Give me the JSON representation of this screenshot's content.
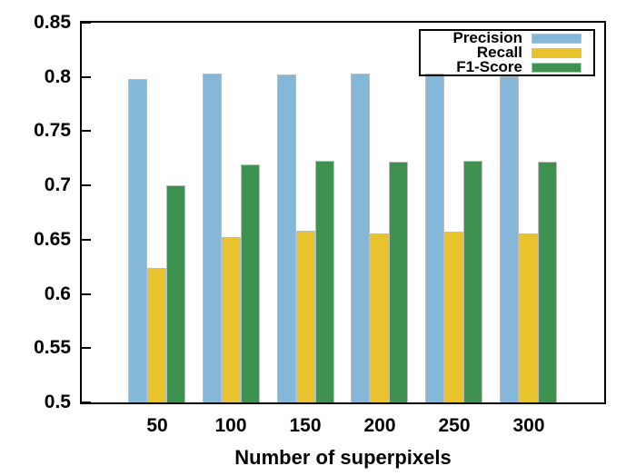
{
  "figure": {
    "background": "#ffffff",
    "axis_color": "#000000",
    "bar_border_color": "#bdbdbd"
  },
  "chart_data": {
    "type": "bar",
    "title": "",
    "xlabel": "Number of superpixels",
    "ylabel": "",
    "categories": [
      "50",
      "100",
      "150",
      "200",
      "250",
      "300"
    ],
    "series": [
      {
        "name": "Precision",
        "color": "#85b7d8",
        "values": [
          0.798,
          0.803,
          0.802,
          0.803,
          0.803,
          0.801
        ]
      },
      {
        "name": "Recall",
        "color": "#e8c32d",
        "values": [
          0.624,
          0.652,
          0.658,
          0.656,
          0.657,
          0.656
        ]
      },
      {
        "name": "F1-Score",
        "color": "#3f9152",
        "values": [
          0.7,
          0.719,
          0.723,
          0.722,
          0.723,
          0.722
        ]
      }
    ],
    "ylim": [
      0.5,
      0.85
    ],
    "ytick_labels": [
      "0.85",
      "0.8",
      "0.75",
      "0.7",
      "0.65",
      "0.6",
      "0.55",
      "0.5"
    ],
    "ytick_values": [
      0.85,
      0.8,
      0.75,
      0.7,
      0.65,
      0.6,
      0.55,
      0.5
    ],
    "grid": false,
    "legend_position": "top-right"
  }
}
